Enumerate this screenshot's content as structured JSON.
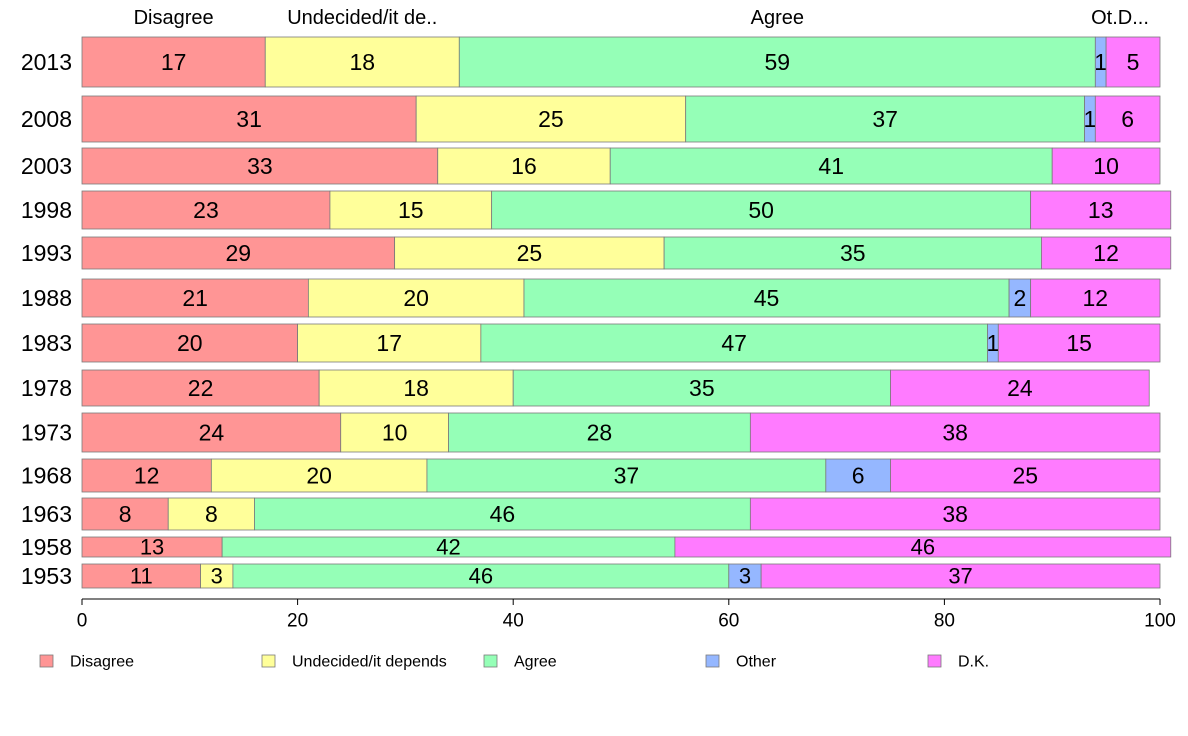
{
  "chart_data": {
    "type": "bar",
    "orientation": "horizontal",
    "stacked": true,
    "categories": [
      "2013",
      "2008",
      "2003",
      "1998",
      "1993",
      "1988",
      "1983",
      "1978",
      "1973",
      "1968",
      "1963",
      "1958",
      "1953"
    ],
    "series": [
      {
        "name": "Disagree",
        "color": "#ff9595",
        "values": [
          17,
          31,
          33,
          23,
          29,
          21,
          20,
          22,
          24,
          12,
          8,
          13,
          11
        ]
      },
      {
        "name": "Undecided/it depends",
        "color": "#ffff9a",
        "values": [
          18,
          25,
          16,
          15,
          25,
          20,
          17,
          18,
          10,
          20,
          8,
          0,
          3
        ]
      },
      {
        "name": "Agree",
        "color": "#95ffb7",
        "values": [
          59,
          37,
          41,
          50,
          35,
          45,
          47,
          35,
          28,
          37,
          46,
          42,
          46
        ]
      },
      {
        "name": "Other",
        "color": "#95b7ff",
        "values": [
          1,
          1,
          0,
          0,
          0,
          2,
          1,
          0,
          0,
          6,
          0,
          0,
          3
        ]
      },
      {
        "name": "D.K.",
        "color": "#ff7bff",
        "values": [
          5,
          6,
          10,
          13,
          12,
          12,
          15,
          24,
          38,
          25,
          38,
          46,
          37
        ]
      }
    ],
    "top_labels": [
      "Disagree",
      "Undecided/it de..",
      "Agree",
      "Ot.D..."
    ],
    "xlim": [
      0,
      100
    ],
    "xticks": [
      0,
      20,
      40,
      60,
      80,
      100
    ],
    "grid": false,
    "legend_position": "bottom"
  }
}
